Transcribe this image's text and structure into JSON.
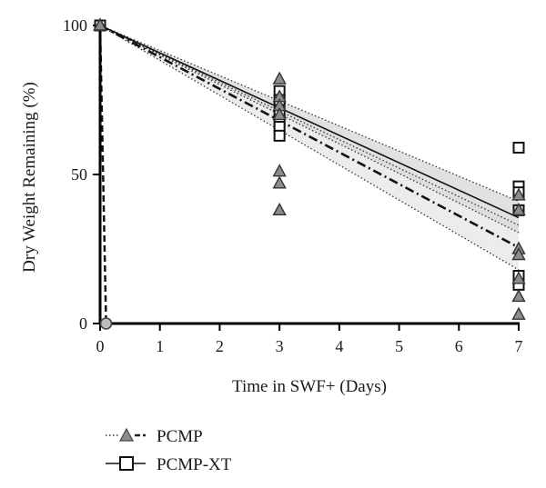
{
  "chart_data": {
    "type": "scatter",
    "xlabel": "Time in SWF+ (Days)",
    "ylabel": "Dry Weight Remaining (%)",
    "xlim": [
      0,
      7
    ],
    "ylim": [
      0,
      100
    ],
    "x_ticks": [
      0,
      1,
      2,
      3,
      4,
      5,
      6,
      7
    ],
    "y_ticks": [
      0,
      50,
      100
    ],
    "grid": false,
    "legend_position": "bottom-left",
    "series": [
      {
        "name": "PCMP",
        "marker": "triangle",
        "marker_fill": "#8c8c8c",
        "points": [
          {
            "x": 0,
            "y": 100
          },
          {
            "x": 0,
            "y": 100
          },
          {
            "x": 0,
            "y": 100
          },
          {
            "x": 3,
            "y": 82
          },
          {
            "x": 3,
            "y": 76
          },
          {
            "x": 3,
            "y": 73
          },
          {
            "x": 3,
            "y": 70
          },
          {
            "x": 3,
            "y": 51
          },
          {
            "x": 3,
            "y": 47
          },
          {
            "x": 3,
            "y": 38
          },
          {
            "x": 7,
            "y": 43
          },
          {
            "x": 7,
            "y": 38
          },
          {
            "x": 7,
            "y": 25
          },
          {
            "x": 7,
            "y": 23
          },
          {
            "x": 7,
            "y": 15
          },
          {
            "x": 7,
            "y": 9
          },
          {
            "x": 7,
            "y": 3
          }
        ],
        "fit": {
          "x": [
            0,
            7
          ],
          "y": [
            100,
            25.5
          ]
        },
        "ci_lower": {
          "x": [
            0,
            7
          ],
          "y": [
            100,
            18
          ]
        },
        "ci_upper": {
          "x": [
            0,
            7
          ],
          "y": [
            100,
            33
          ]
        }
      },
      {
        "name": "PCMP-XT",
        "marker": "square",
        "marker_fill": "#ffffff",
        "points": [
          {
            "x": 0,
            "y": 100
          },
          {
            "x": 0,
            "y": 100
          },
          {
            "x": 3,
            "y": 78
          },
          {
            "x": 3,
            "y": 75
          },
          {
            "x": 3,
            "y": 71
          },
          {
            "x": 3,
            "y": 68
          },
          {
            "x": 3,
            "y": 66
          },
          {
            "x": 3,
            "y": 63
          },
          {
            "x": 7,
            "y": 59
          },
          {
            "x": 7,
            "y": 46
          },
          {
            "x": 7,
            "y": 44
          },
          {
            "x": 7,
            "y": 38
          },
          {
            "x": 7,
            "y": 16
          },
          {
            "x": 7,
            "y": 13
          }
        ],
        "fit": {
          "x": [
            0,
            7
          ],
          "y": [
            100,
            35.5
          ]
        },
        "ci_lower": {
          "x": [
            0,
            7
          ],
          "y": [
            100,
            30.5
          ]
        },
        "ci_upper": {
          "x": [
            0,
            7
          ],
          "y": [
            100,
            41
          ]
        }
      },
      {
        "marker": "circle",
        "marker_fill": "#bdbdbd",
        "points": [
          {
            "x": 0.1,
            "y": 0
          }
        ],
        "line": {
          "x": [
            0,
            0.1
          ],
          "y": [
            100,
            0
          ]
        }
      }
    ]
  }
}
